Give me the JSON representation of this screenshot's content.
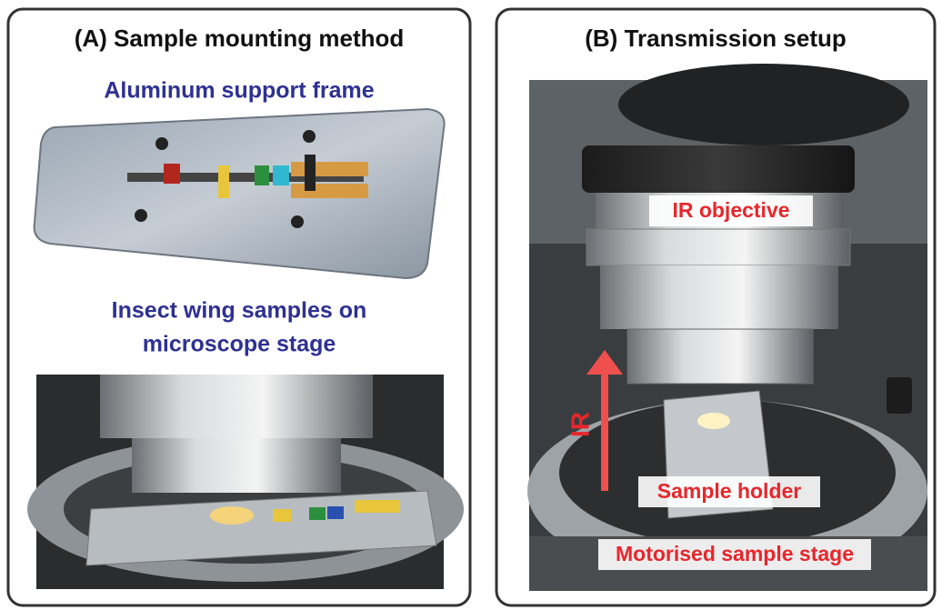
{
  "panels": [
    {
      "title": "(A) Sample mounting method",
      "labels": [
        "Aluminum support frame",
        "Insect wing samples on",
        "microscope stage"
      ]
    },
    {
      "title": "(B) Transmission setup",
      "labels": [
        "IR objective",
        "IR",
        "Sample holder",
        "Motorised sample stage"
      ]
    }
  ]
}
